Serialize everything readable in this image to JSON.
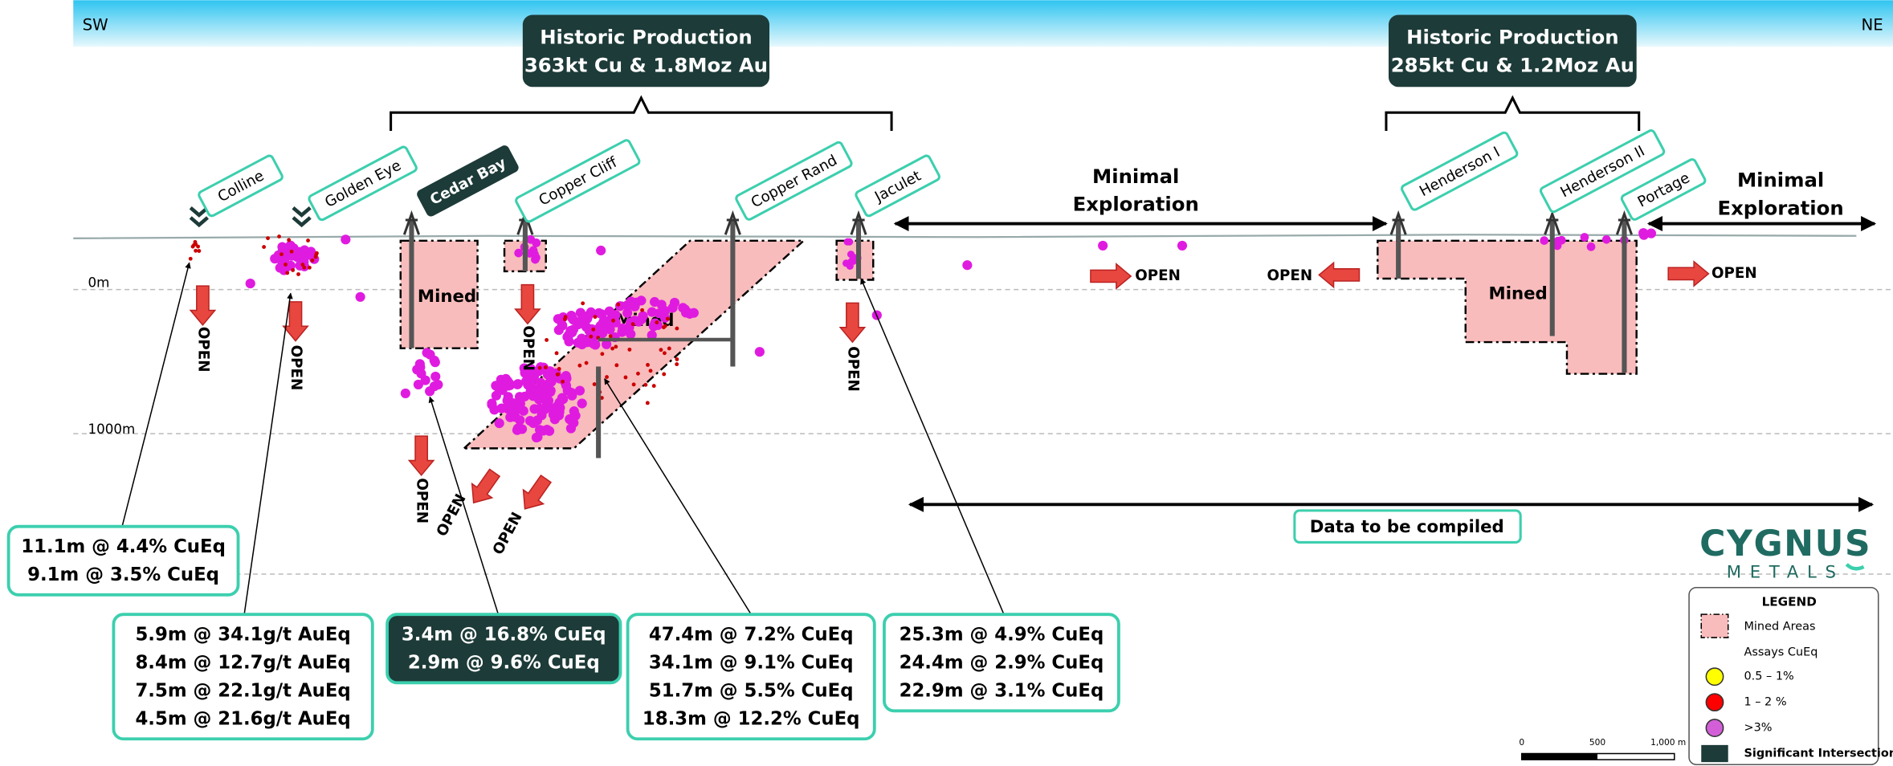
{
  "orientation": {
    "left": "SW",
    "right": "NE"
  },
  "production": [
    {
      "title": "Historic Production",
      "detail": "363kt Cu & 1.8Moz Au"
    },
    {
      "title": "Historic Production",
      "detail": "285kt Cu & 1.2Moz Au"
    }
  ],
  "deposits": [
    "Colline",
    "Golden Eye",
    "Cedar Bay",
    "Copper Cliff",
    "Copper Rand",
    "Jaculet",
    "Henderson I",
    "Henderson II",
    "Portage"
  ],
  "depth_labels": [
    "0m",
    "1000m"
  ],
  "mined_label": "Mined",
  "open_label": "OPEN",
  "minimal_exploration": [
    "Minimal",
    "Exploration"
  ],
  "data_to_be_compiled": "Data to be compiled",
  "intercepts": [
    [
      "11.1m @ 4.4% CuEq",
      "9.1m @ 3.5% CuEq"
    ],
    [
      "5.9m @ 34.1g/t AuEq",
      "8.4m @ 12.7g/t AuEq",
      "7.5m @ 22.1g/t AuEq",
      "4.5m @ 21.6g/t AuEq"
    ],
    [
      "3.4m @ 16.8% CuEq",
      "2.9m @ 9.6% CuEq"
    ],
    [
      "47.4m @ 7.2% CuEq",
      "34.1m @ 9.1% CuEq",
      "51.7m @ 5.5% CuEq",
      "18.3m @ 12.2% CuEq"
    ],
    [
      "25.3m @ 4.9% CuEq",
      "24.4m @ 2.9% CuEq",
      "22.9m @ 3.1% CuEq"
    ]
  ],
  "logo": {
    "name": "CYGNUS",
    "sub": "METALS"
  },
  "legend": {
    "title": "LEGEND",
    "items": [
      "Mined Areas",
      "Assays CuEq",
      "0.5 – 1%",
      "1 – 2 %",
      ">3%",
      "Significant Intersection"
    ]
  },
  "scale_bar": [
    "0",
    "500",
    "1,000 m"
  ]
}
